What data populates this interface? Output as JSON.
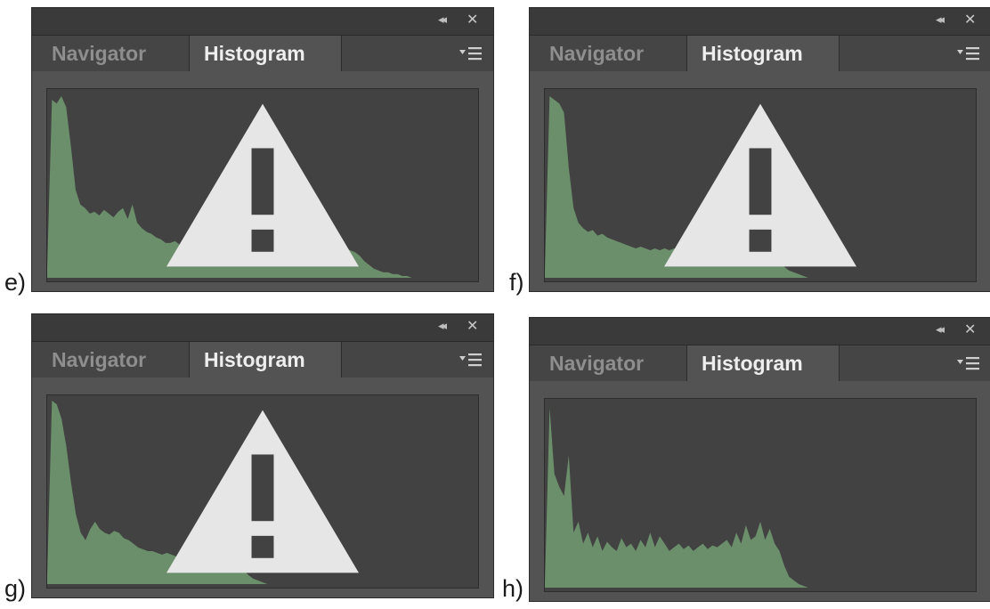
{
  "panels": [
    {
      "figure_label": "e)",
      "tabs": [
        "Navigator",
        "Histogram"
      ],
      "active_tab": "Histogram",
      "show_warning": true,
      "histogram_color": "#6b8f6b",
      "histogram_levels": [
        0.05,
        0.97,
        0.95,
        0.99,
        0.93,
        0.72,
        0.48,
        0.4,
        0.38,
        0.35,
        0.36,
        0.34,
        0.37,
        0.35,
        0.33,
        0.36,
        0.38,
        0.32,
        0.4,
        0.3,
        0.27,
        0.25,
        0.24,
        0.22,
        0.21,
        0.19,
        0.19,
        0.2,
        0.18,
        0.17,
        0.19,
        0.18,
        0.16,
        0.17,
        0.16,
        0.15,
        0.16,
        0.15,
        0.14,
        0.15,
        0.14,
        0.15,
        0.13,
        0.14,
        0.15,
        0.14,
        0.16,
        0.15,
        0.14,
        0.15,
        0.16,
        0.17,
        0.16,
        0.15,
        0.17,
        0.16,
        0.18,
        0.16,
        0.17,
        0.15,
        0.16,
        0.17,
        0.18,
        0.16,
        0.15,
        0.14,
        0.12,
        0.09,
        0.07,
        0.05,
        0.04,
        0.03,
        0.03,
        0.02,
        0.02,
        0.01,
        0.01,
        0,
        0,
        0,
        0,
        0,
        0,
        0,
        0,
        0,
        0,
        0,
        0,
        0,
        0,
        0
      ]
    },
    {
      "figure_label": "f)",
      "tabs": [
        "Navigator",
        "Histogram"
      ],
      "active_tab": "Histogram",
      "show_warning": true,
      "histogram_color": "#6b8f6b",
      "histogram_levels": [
        0.03,
        0.99,
        0.97,
        0.95,
        0.9,
        0.6,
        0.38,
        0.3,
        0.27,
        0.25,
        0.26,
        0.23,
        0.24,
        0.22,
        0.21,
        0.2,
        0.19,
        0.18,
        0.17,
        0.16,
        0.17,
        0.16,
        0.15,
        0.16,
        0.15,
        0.16,
        0.15,
        0.16,
        0.15,
        0.16,
        0.16,
        0.15,
        0.16,
        0.17,
        0.16,
        0.17,
        0.16,
        0.17,
        0.18,
        0.17,
        0.18,
        0.19,
        0.2,
        0.19,
        0.21,
        0.23,
        0.2,
        0.16,
        0.12,
        0.08,
        0.06,
        0.04,
        0.03,
        0.02,
        0.01,
        0,
        0,
        0,
        0,
        0,
        0,
        0,
        0,
        0,
        0,
        0,
        0,
        0,
        0,
        0,
        0,
        0,
        0,
        0,
        0,
        0,
        0,
        0,
        0,
        0,
        0,
        0,
        0,
        0,
        0,
        0,
        0,
        0,
        0,
        0,
        0
      ]
    },
    {
      "figure_label": "g)",
      "tabs": [
        "Navigator",
        "Histogram"
      ],
      "active_tab": "Histogram",
      "show_warning": true,
      "histogram_color": "#6b8f6b",
      "histogram_levels": [
        0.04,
        1.0,
        0.98,
        0.9,
        0.75,
        0.55,
        0.38,
        0.28,
        0.24,
        0.3,
        0.34,
        0.3,
        0.28,
        0.27,
        0.29,
        0.28,
        0.25,
        0.24,
        0.22,
        0.2,
        0.19,
        0.18,
        0.18,
        0.17,
        0.16,
        0.17,
        0.16,
        0.15,
        0.16,
        0.15,
        0.16,
        0.15,
        0.15,
        0.16,
        0.17,
        0.18,
        0.22,
        0.28,
        0.24,
        0.18,
        0.12,
        0.08,
        0.05,
        0.03,
        0.02,
        0.01,
        0,
        0,
        0,
        0,
        0,
        0,
        0,
        0,
        0,
        0,
        0,
        0,
        0,
        0,
        0,
        0,
        0,
        0,
        0,
        0,
        0,
        0,
        0,
        0,
        0,
        0,
        0,
        0,
        0,
        0,
        0,
        0,
        0,
        0,
        0,
        0,
        0,
        0,
        0,
        0,
        0,
        0,
        0,
        0,
        0
      ]
    },
    {
      "figure_label": "h)",
      "tabs": [
        "Navigator",
        "Histogram"
      ],
      "active_tab": "Histogram",
      "show_warning": false,
      "histogram_color": "#6b8f6b",
      "histogram_levels": [
        0.02,
        0.98,
        0.62,
        0.55,
        0.5,
        0.72,
        0.3,
        0.36,
        0.24,
        0.3,
        0.22,
        0.28,
        0.2,
        0.25,
        0.22,
        0.2,
        0.27,
        0.22,
        0.24,
        0.2,
        0.26,
        0.22,
        0.3,
        0.22,
        0.28,
        0.24,
        0.2,
        0.22,
        0.24,
        0.21,
        0.23,
        0.2,
        0.22,
        0.24,
        0.21,
        0.23,
        0.22,
        0.24,
        0.26,
        0.22,
        0.3,
        0.24,
        0.34,
        0.26,
        0.28,
        0.36,
        0.26,
        0.32,
        0.24,
        0.2,
        0.12,
        0.06,
        0.04,
        0.02,
        0.01,
        0,
        0,
        0,
        0,
        0,
        0,
        0,
        0,
        0,
        0,
        0,
        0,
        0,
        0,
        0,
        0,
        0,
        0,
        0,
        0,
        0,
        0,
        0,
        0,
        0,
        0,
        0,
        0,
        0,
        0,
        0,
        0,
        0,
        0,
        0,
        0
      ]
    }
  ]
}
